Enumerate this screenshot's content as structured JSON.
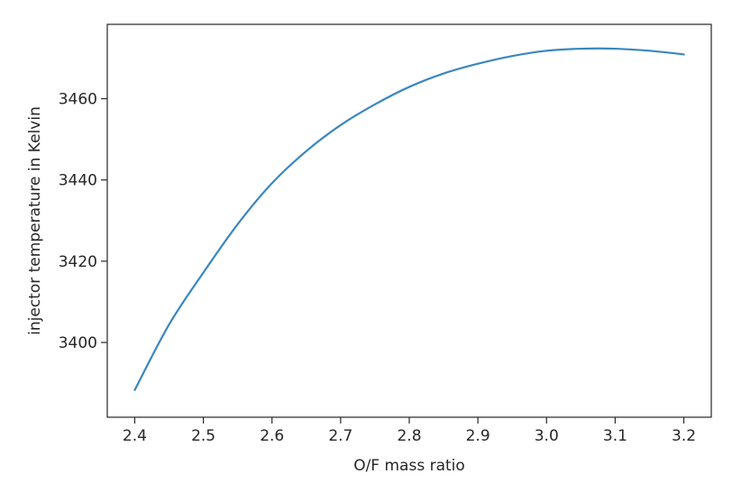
{
  "chart_data": {
    "type": "line",
    "title": "",
    "xlabel": "O/F mass ratio",
    "ylabel": "injector temperature in Kelvin",
    "xlim": [
      2.36,
      3.24
    ],
    "ylim": [
      3381.6,
      3478.3
    ],
    "xticks": [
      2.4,
      2.5,
      2.6,
      2.7,
      2.8,
      2.9,
      3.0,
      3.1,
      3.2
    ],
    "xtick_labels": [
      "2.4",
      "2.5",
      "2.6",
      "2.7",
      "2.8",
      "2.9",
      "3.0",
      "3.1",
      "3.2"
    ],
    "yticks": [
      3400,
      3420,
      3440,
      3460
    ],
    "ytick_labels": [
      "3400",
      "3420",
      "3440",
      "3460"
    ],
    "grid": false,
    "legend": null,
    "series": [
      {
        "color": "#3a87c0",
        "x": [
          2.4,
          2.45,
          2.5,
          2.55,
          2.6,
          2.65,
          2.7,
          2.75,
          2.8,
          2.85,
          2.9,
          2.95,
          3.0,
          3.05,
          3.1,
          3.15,
          3.2
        ],
        "y": [
          3388.3,
          3404.4,
          3417.2,
          3429.1,
          3439.2,
          3447.1,
          3453.5,
          3458.6,
          3462.9,
          3466.2,
          3468.6,
          3470.5,
          3471.8,
          3472.3,
          3472.3,
          3471.8,
          3470.9
        ]
      }
    ]
  }
}
